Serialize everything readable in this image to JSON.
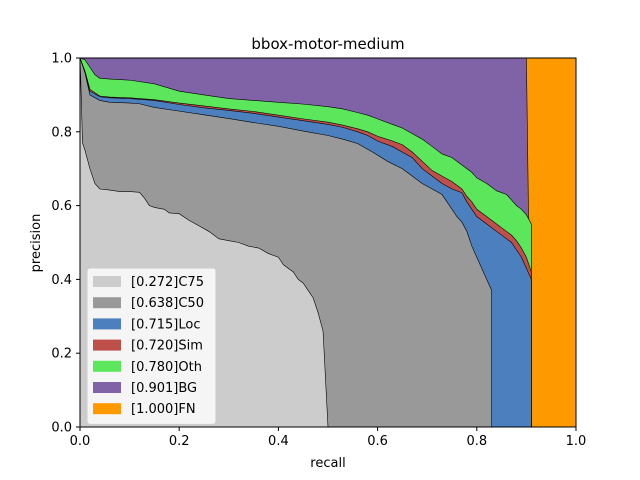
{
  "chart_data": {
    "type": "area",
    "title": "bbox-motor-medium",
    "xlabel": "recall",
    "ylabel": "precision",
    "xlim": [
      0,
      1
    ],
    "ylim": [
      0,
      1
    ],
    "x_ticks": [
      "0.0",
      "0.2",
      "0.4",
      "0.6",
      "0.8",
      "1.0"
    ],
    "y_ticks": [
      "0.0",
      "0.2",
      "0.4",
      "0.6",
      "0.8",
      "1.0"
    ],
    "grid": false,
    "legend_position": "lower-left",
    "series": [
      {
        "name": "[0.272]C75",
        "color": "#cccccc",
        "points": [
          [
            0,
            1.0
          ],
          [
            0.002,
            0.92
          ],
          [
            0.005,
            0.77
          ],
          [
            0.01,
            0.75
          ],
          [
            0.02,
            0.7
          ],
          [
            0.03,
            0.66
          ],
          [
            0.04,
            0.645
          ],
          [
            0.06,
            0.642
          ],
          [
            0.08,
            0.638
          ],
          [
            0.1,
            0.638
          ],
          [
            0.12,
            0.636
          ],
          [
            0.13,
            0.62
          ],
          [
            0.14,
            0.6
          ],
          [
            0.15,
            0.595
          ],
          [
            0.17,
            0.59
          ],
          [
            0.18,
            0.58
          ],
          [
            0.2,
            0.578
          ],
          [
            0.22,
            0.56
          ],
          [
            0.24,
            0.545
          ],
          [
            0.26,
            0.53
          ],
          [
            0.28,
            0.51
          ],
          [
            0.3,
            0.505
          ],
          [
            0.32,
            0.5
          ],
          [
            0.34,
            0.49
          ],
          [
            0.36,
            0.485
          ],
          [
            0.38,
            0.47
          ],
          [
            0.4,
            0.46
          ],
          [
            0.41,
            0.44
          ],
          [
            0.42,
            0.43
          ],
          [
            0.43,
            0.42
          ],
          [
            0.44,
            0.4
          ],
          [
            0.45,
            0.39
          ],
          [
            0.46,
            0.37
          ],
          [
            0.47,
            0.35
          ],
          [
            0.48,
            0.31
          ],
          [
            0.49,
            0.26
          ],
          [
            0.5,
            0.0
          ]
        ]
      },
      {
        "name": "[0.638]C50",
        "color": "#999999",
        "points": [
          [
            0,
            1.0
          ],
          [
            0.01,
            0.96
          ],
          [
            0.02,
            0.9
          ],
          [
            0.04,
            0.885
          ],
          [
            0.06,
            0.88
          ],
          [
            0.1,
            0.878
          ],
          [
            0.12,
            0.876
          ],
          [
            0.15,
            0.866
          ],
          [
            0.2,
            0.856
          ],
          [
            0.25,
            0.846
          ],
          [
            0.3,
            0.836
          ],
          [
            0.35,
            0.825
          ],
          [
            0.4,
            0.815
          ],
          [
            0.45,
            0.802
          ],
          [
            0.5,
            0.79
          ],
          [
            0.53,
            0.78
          ],
          [
            0.56,
            0.768
          ],
          [
            0.59,
            0.745
          ],
          [
            0.62,
            0.72
          ],
          [
            0.65,
            0.7
          ],
          [
            0.67,
            0.68
          ],
          [
            0.69,
            0.66
          ],
          [
            0.71,
            0.645
          ],
          [
            0.73,
            0.63
          ],
          [
            0.74,
            0.61
          ],
          [
            0.75,
            0.59
          ],
          [
            0.76,
            0.57
          ],
          [
            0.77,
            0.555
          ],
          [
            0.78,
            0.53
          ],
          [
            0.79,
            0.49
          ],
          [
            0.8,
            0.46
          ],
          [
            0.81,
            0.43
          ],
          [
            0.82,
            0.4
          ],
          [
            0.83,
            0.37
          ],
          [
            0.83,
            0.0
          ]
        ]
      },
      {
        "name": "[0.715]Loc",
        "color": "#4c7fbe",
        "points": [
          [
            0,
            1.0
          ],
          [
            0.01,
            0.96
          ],
          [
            0.02,
            0.91
          ],
          [
            0.04,
            0.895
          ],
          [
            0.06,
            0.892
          ],
          [
            0.1,
            0.89
          ],
          [
            0.15,
            0.885
          ],
          [
            0.2,
            0.874
          ],
          [
            0.25,
            0.865
          ],
          [
            0.3,
            0.858
          ],
          [
            0.35,
            0.85
          ],
          [
            0.4,
            0.84
          ],
          [
            0.45,
            0.83
          ],
          [
            0.5,
            0.82
          ],
          [
            0.53,
            0.812
          ],
          [
            0.56,
            0.8
          ],
          [
            0.58,
            0.79
          ],
          [
            0.6,
            0.775
          ],
          [
            0.63,
            0.76
          ],
          [
            0.65,
            0.745
          ],
          [
            0.67,
            0.73
          ],
          [
            0.69,
            0.7
          ],
          [
            0.71,
            0.68
          ],
          [
            0.73,
            0.66
          ],
          [
            0.75,
            0.645
          ],
          [
            0.77,
            0.635
          ],
          [
            0.78,
            0.61
          ],
          [
            0.79,
            0.59
          ],
          [
            0.8,
            0.57
          ],
          [
            0.82,
            0.55
          ],
          [
            0.84,
            0.53
          ],
          [
            0.86,
            0.51
          ],
          [
            0.87,
            0.5
          ],
          [
            0.88,
            0.48
          ],
          [
            0.89,
            0.46
          ],
          [
            0.9,
            0.43
          ],
          [
            0.91,
            0.4
          ],
          [
            0.91,
            0.0
          ]
        ]
      },
      {
        "name": "[0.720]Sim",
        "color": "#bf4f4b",
        "points": [
          [
            0,
            1.0
          ],
          [
            0.01,
            0.965
          ],
          [
            0.02,
            0.915
          ],
          [
            0.04,
            0.897
          ],
          [
            0.06,
            0.894
          ],
          [
            0.1,
            0.892
          ],
          [
            0.15,
            0.887
          ],
          [
            0.2,
            0.878
          ],
          [
            0.25,
            0.87
          ],
          [
            0.3,
            0.862
          ],
          [
            0.35,
            0.855
          ],
          [
            0.4,
            0.845
          ],
          [
            0.45,
            0.835
          ],
          [
            0.5,
            0.826
          ],
          [
            0.53,
            0.818
          ],
          [
            0.56,
            0.808
          ],
          [
            0.58,
            0.8
          ],
          [
            0.6,
            0.788
          ],
          [
            0.63,
            0.775
          ],
          [
            0.65,
            0.765
          ],
          [
            0.67,
            0.745
          ],
          [
            0.69,
            0.72
          ],
          [
            0.71,
            0.695
          ],
          [
            0.73,
            0.68
          ],
          [
            0.75,
            0.665
          ],
          [
            0.77,
            0.645
          ],
          [
            0.78,
            0.625
          ],
          [
            0.79,
            0.61
          ],
          [
            0.8,
            0.59
          ],
          [
            0.82,
            0.57
          ],
          [
            0.84,
            0.55
          ],
          [
            0.86,
            0.53
          ],
          [
            0.87,
            0.52
          ],
          [
            0.88,
            0.505
          ],
          [
            0.89,
            0.485
          ],
          [
            0.9,
            0.46
          ],
          [
            0.91,
            0.42
          ],
          [
            0.91,
            0.0
          ]
        ]
      },
      {
        "name": "[0.780]Oth",
        "color": "#5ce65c",
        "points": [
          [
            0,
            1.0
          ],
          [
            0.01,
            0.995
          ],
          [
            0.02,
            0.975
          ],
          [
            0.03,
            0.955
          ],
          [
            0.04,
            0.945
          ],
          [
            0.06,
            0.943
          ],
          [
            0.1,
            0.94
          ],
          [
            0.15,
            0.93
          ],
          [
            0.2,
            0.91
          ],
          [
            0.25,
            0.9
          ],
          [
            0.3,
            0.89
          ],
          [
            0.35,
            0.885
          ],
          [
            0.4,
            0.88
          ],
          [
            0.45,
            0.875
          ],
          [
            0.5,
            0.868
          ],
          [
            0.53,
            0.862
          ],
          [
            0.56,
            0.852
          ],
          [
            0.58,
            0.845
          ],
          [
            0.6,
            0.835
          ],
          [
            0.63,
            0.82
          ],
          [
            0.65,
            0.81
          ],
          [
            0.67,
            0.795
          ],
          [
            0.69,
            0.78
          ],
          [
            0.71,
            0.76
          ],
          [
            0.73,
            0.74
          ],
          [
            0.75,
            0.73
          ],
          [
            0.77,
            0.71
          ],
          [
            0.79,
            0.69
          ],
          [
            0.8,
            0.675
          ],
          [
            0.82,
            0.66
          ],
          [
            0.84,
            0.64
          ],
          [
            0.86,
            0.63
          ],
          [
            0.87,
            0.615
          ],
          [
            0.88,
            0.6
          ],
          [
            0.89,
            0.59
          ],
          [
            0.9,
            0.575
          ],
          [
            0.91,
            0.55
          ],
          [
            0.91,
            0.0
          ]
        ]
      },
      {
        "name": "[0.901]BG",
        "color": "#8062a6",
        "points": [
          [
            0,
            1.0
          ],
          [
            0.9,
            1.0
          ],
          [
            0.91,
            0.0
          ]
        ]
      },
      {
        "name": "[1.000]FN",
        "color": "#ff9900",
        "points": [
          [
            0,
            1.0
          ],
          [
            1.0,
            1.0
          ],
          [
            1.0,
            0.0
          ]
        ]
      }
    ]
  }
}
